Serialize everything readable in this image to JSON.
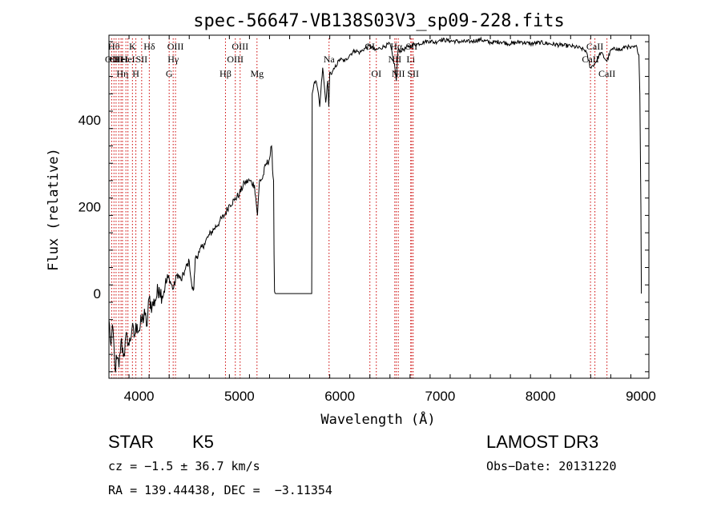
{
  "chart_data": {
    "type": "line",
    "title": "spec-56647-VB138S03V3_sp09-228.fits",
    "xlabel": "Wavelength (Å)",
    "ylabel": "Flux (relative)",
    "xlim": [
      3700,
      9080
    ],
    "ylim": [
      -195,
      595
    ],
    "xticks": [
      4000,
      5000,
      6000,
      7000,
      8000,
      9000
    ],
    "yticks": [
      0,
      200,
      400
    ],
    "grid": false,
    "line_color": "#000000",
    "marker_color": "#cc0000",
    "series": [
      {
        "x": [
          3700,
          3720,
          3740,
          3760,
          3780,
          3800,
          3820,
          3850,
          3880,
          3900,
          3930,
          3950,
          3980,
          4000,
          4030,
          4060,
          4080,
          4100,
          4130,
          4160,
          4200,
          4230,
          4260,
          4300,
          4340,
          4380,
          4420,
          4460,
          4500,
          4520,
          4530,
          4545,
          4560,
          4600,
          4650,
          4700,
          4750,
          4800,
          4850,
          4900,
          4950,
          5000,
          5050,
          5100,
          5150,
          5180,
          5200,
          5230,
          5260,
          5300,
          5320,
          5335,
          5340,
          5345,
          5350,
          5360,
          5450,
          5550,
          5650,
          5720,
          5725,
          5740,
          5760,
          5780,
          5800,
          5830,
          5860,
          5880,
          5890,
          5900,
          5920,
          5950,
          6000,
          6050,
          6100,
          6150,
          6200,
          6250,
          6300,
          6350,
          6400,
          6450,
          6500,
          6550,
          6563,
          6580,
          6620,
          6680,
          6720,
          6780,
          6850,
          6900,
          6950,
          7000,
          7100,
          7200,
          7300,
          7400,
          7500,
          7600,
          7700,
          7800,
          7900,
          8000,
          8100,
          8200,
          8300,
          8400,
          8450,
          8498,
          8542,
          8600,
          8662,
          8700,
          8760,
          8800,
          8850,
          8900,
          8960,
          8980,
          8990,
          9000,
          9005
        ],
        "y": [
          -60,
          -120,
          -80,
          -175,
          -150,
          -170,
          -110,
          -140,
          -95,
          -120,
          -80,
          -100,
          -70,
          -85,
          -60,
          -50,
          -75,
          -10,
          -30,
          -15,
          15,
          -5,
          20,
          35,
          10,
          45,
          30,
          55,
          75,
          30,
          10,
          10,
          80,
          95,
          115,
          135,
          150,
          165,
          180,
          205,
          215,
          230,
          255,
          260,
          250,
          180,
          260,
          265,
          295,
          310,
          340,
          270,
          260,
          90,
          5,
          0,
          0,
          0,
          0,
          0,
          460,
          480,
          490,
          470,
          430,
          520,
          440,
          490,
          430,
          510,
          505,
          520,
          540,
          535,
          550,
          560,
          555,
          565,
          570,
          560,
          565,
          570,
          575,
          520,
          490,
          560,
          560,
          568,
          572,
          575,
          580,
          582,
          578,
          585,
          582,
          580,
          580,
          585,
          578,
          580,
          575,
          580,
          575,
          578,
          575,
          572,
          570,
          565,
          560,
          520,
          530,
          555,
          535,
          560,
          565,
          560,
          570,
          565,
          568,
          550,
          460,
          200,
          0
        ]
      }
    ],
    "spectral_lines": [
      {
        "x": 3727,
        "label": "OII",
        "row": 2
      },
      {
        "x": 3750,
        "label": "Hθ",
        "row": 1
      },
      {
        "x": 3771,
        "label": "OII",
        "row": 2
      },
      {
        "x": 3798,
        "label": "",
        "row": 0
      },
      {
        "x": 3820,
        "label": "HeI",
        "row": 2
      },
      {
        "x": 3835,
        "label": "Hη",
        "row": 3
      },
      {
        "x": 3869,
        "label": "",
        "row": 0
      },
      {
        "x": 3889,
        "label": "HeI",
        "row": 2
      },
      {
        "x": 3934,
        "label": "K",
        "row": 1
      },
      {
        "x": 3968,
        "label": "H",
        "row": 3
      },
      {
        "x": 4026,
        "label": "SII",
        "row": 2
      },
      {
        "x": 4102,
        "label": "Hδ",
        "row": 1
      },
      {
        "x": 4300,
        "label": "G",
        "row": 3
      },
      {
        "x": 4340,
        "label": "Hγ",
        "row": 2
      },
      {
        "x": 4363,
        "label": "OIII",
        "row": 1
      },
      {
        "x": 4861,
        "label": "Hβ",
        "row": 3
      },
      {
        "x": 4959,
        "label": "OIII",
        "row": 2
      },
      {
        "x": 5007,
        "label": "OIII",
        "row": 1
      },
      {
        "x": 5175,
        "label": "Mg",
        "row": 3
      },
      {
        "x": 5893,
        "label": "Na",
        "row": 2
      },
      {
        "x": 6300,
        "label": "OI",
        "row": 1
      },
      {
        "x": 6364,
        "label": "OI",
        "row": 3
      },
      {
        "x": 6548,
        "label": "NII",
        "row": 2
      },
      {
        "x": 6563,
        "label": "Hα",
        "row": 1
      },
      {
        "x": 6583,
        "label": "NII",
        "row": 3
      },
      {
        "x": 6707,
        "label": "Li",
        "row": 2
      },
      {
        "x": 6716,
        "label": "SII",
        "row": 1
      },
      {
        "x": 6731,
        "label": "SII",
        "row": 3
      },
      {
        "x": 8498,
        "label": "CaII",
        "row": 2
      },
      {
        "x": 8542,
        "label": "CaII",
        "row": 1
      },
      {
        "x": 8662,
        "label": "CaII",
        "row": 3
      }
    ]
  },
  "info": {
    "class": "STAR",
    "subclass": "K5",
    "survey": "LAMOST DR3",
    "cz": "cz = −1.5 ± 36.7 km/s",
    "obs_date": "Obs−Date: 20131220",
    "coords": "RA = 139.44438, DEC =  −3.11354"
  }
}
